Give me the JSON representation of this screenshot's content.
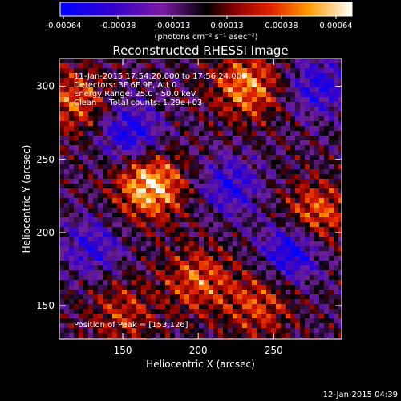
{
  "chart_data": {
    "type": "heatmap",
    "title": "Reconstructed RHESSI Image",
    "xlabel": "Heliocentric X (arcsec)",
    "ylabel": "Heliocentric Y (arcsec)",
    "xlim": [
      108,
      295
    ],
    "ylim": [
      127,
      319
    ],
    "x_ticks": [
      150,
      200,
      250
    ],
    "y_ticks": [
      150,
      200,
      250,
      300
    ],
    "grid": false,
    "colorbar": {
      "ticks": [
        "-0.00064",
        "-0.00038",
        "-0.00013",
        "0.00013",
        "0.00038",
        "0.00064"
      ],
      "unit_label": "(photons cm⁻² s⁻¹ asec⁻²)",
      "range": [
        -0.00064,
        0.00064
      ]
    },
    "annotations": [
      "11-Jan-2015 17:54:20.000 to 17:56:24.000",
      "Detectors: 3F 6F 9F, Att 0",
      "Energy Range: 25.0 - 50.0 keV",
      "Clean     Total counts: 1.29e+03"
    ],
    "peak_label": "Position of Peak = [153,126]",
    "bright_sources": [
      {
        "x": 168,
        "y": 232,
        "value": 0.00064
      },
      {
        "x": 232,
        "y": 300,
        "value": 0.0005
      },
      {
        "x": 278,
        "y": 212,
        "value": 0.00045
      },
      {
        "x": 118,
        "y": 290,
        "value": 0.0004
      },
      {
        "x": 200,
        "y": 168,
        "value": 0.0004
      },
      {
        "x": 240,
        "y": 150,
        "value": 0.00035
      },
      {
        "x": 150,
        "y": 145,
        "value": 0.0003
      }
    ],
    "dark_sources": [
      {
        "x": 262,
        "y": 188,
        "value": -0.00055
      },
      {
        "x": 155,
        "y": 268,
        "value": -0.0005
      },
      {
        "x": 222,
        "y": 232,
        "value": -0.0004
      },
      {
        "x": 130,
        "y": 190,
        "value": -0.00035
      },
      {
        "x": 280,
        "y": 300,
        "value": -0.0004
      }
    ]
  },
  "footer": {
    "timestamp": "12-Jan-2015 04:39"
  }
}
